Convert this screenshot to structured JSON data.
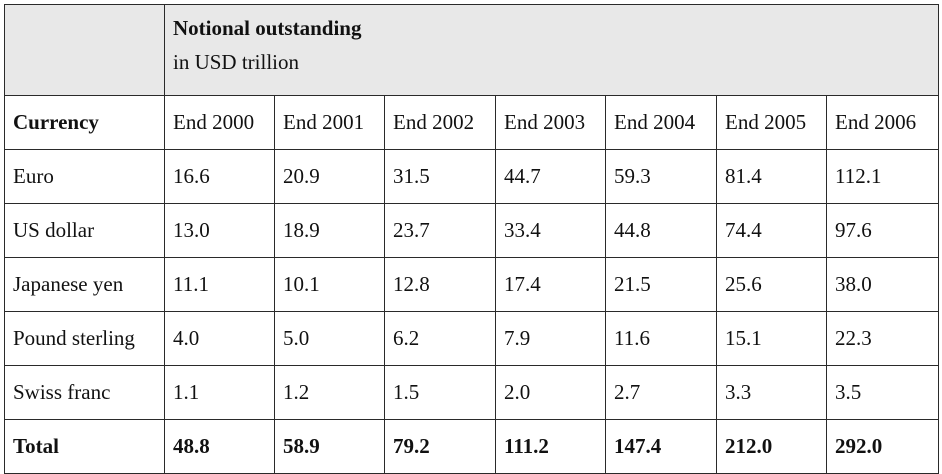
{
  "table": {
    "title": "Notional outstanding",
    "subtitle": "in USD trillion",
    "corner_label": "Currency",
    "columns": [
      "End 2000",
      "End 2001",
      "End 2002",
      "End 2003",
      "End 2004",
      "End 2005",
      "End 2006"
    ],
    "rows": [
      {
        "label": "Euro",
        "values": [
          "16.6",
          "20.9",
          "31.5",
          "44.7",
          "59.3",
          "81.4",
          "112.1"
        ]
      },
      {
        "label": "US dollar",
        "values": [
          "13.0",
          "18.9",
          "23.7",
          "33.4",
          "44.8",
          "74.4",
          "97.6"
        ]
      },
      {
        "label": "Japanese yen",
        "values": [
          "11.1",
          "10.1",
          "12.8",
          "17.4",
          "21.5",
          "25.6",
          "38.0"
        ]
      },
      {
        "label": "Pound sterling",
        "values": [
          "4.0",
          "5.0",
          "6.2",
          "7.9",
          "11.6",
          "15.1",
          "22.3"
        ]
      },
      {
        "label": "Swiss franc",
        "values": [
          "1.1",
          "1.2",
          "1.5",
          "2.0",
          "2.7",
          "3.3",
          "3.5"
        ]
      }
    ],
    "total": {
      "label": "Total",
      "values": [
        "48.8",
        "58.9",
        "79.2",
        "111.2",
        "147.4",
        "212.0",
        "292.0"
      ]
    }
  }
}
